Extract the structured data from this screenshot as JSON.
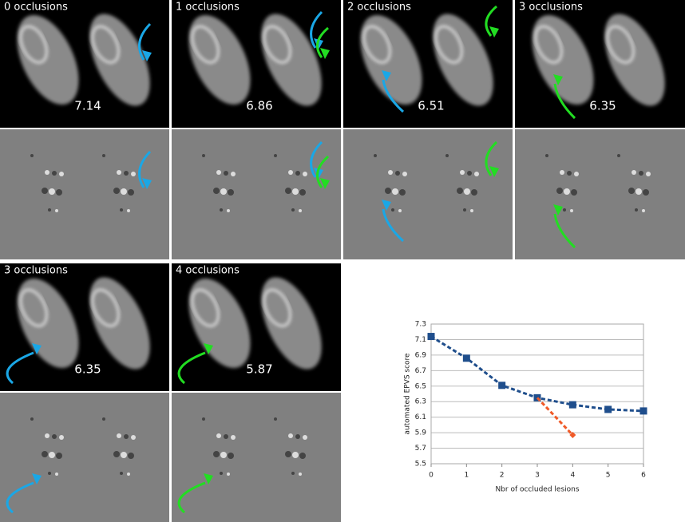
{
  "panels": [
    {
      "label": "0 occlusions",
      "score": "7.14"
    },
    {
      "label": "1 occlusions",
      "score": "6.86"
    },
    {
      "label": "2 occlusions",
      "score": "6.51"
    },
    {
      "label": "3 occlusions",
      "score": "6.35"
    },
    {
      "label": "3 occlusions",
      "score": "6.35"
    },
    {
      "label": "4 occlusions",
      "score": "5.87"
    }
  ],
  "chart_data": {
    "type": "line",
    "xlabel": "Nbr of occluded lesions",
    "ylabel": "automated EPVS score",
    "series": [
      {
        "color": "#1f4e8c",
        "dashed": true,
        "marker": "square",
        "x": [
          0,
          1,
          2,
          3,
          4,
          5,
          6
        ],
        "values": [
          7.14,
          6.86,
          6.51,
          6.35,
          6.26,
          6.2,
          6.18
        ]
      },
      {
        "color": "#f05a28",
        "dashed": true,
        "marker": "diamond",
        "x": [
          3,
          4
        ],
        "values": [
          6.35,
          5.87
        ]
      }
    ],
    "xlim": [
      0,
      6
    ],
    "xticks": [
      0,
      1,
      2,
      3,
      4,
      5,
      6
    ],
    "ylim": [
      5.5,
      7.3
    ],
    "yticks": [
      5.5,
      5.7,
      5.9,
      6.1,
      6.3,
      6.5,
      6.7,
      6.9,
      7.1,
      7.3
    ],
    "grid": true
  }
}
